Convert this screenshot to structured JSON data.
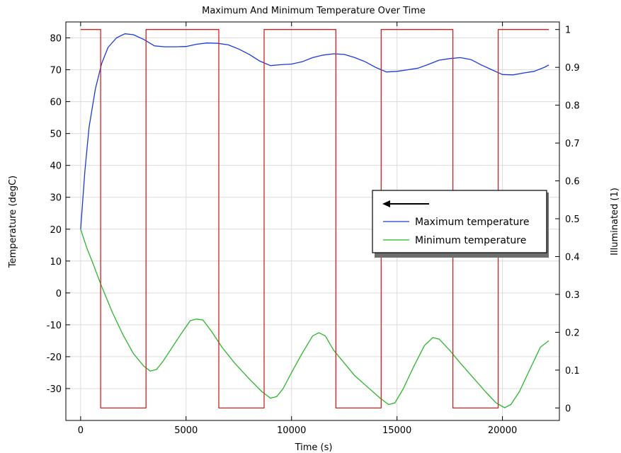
{
  "chart_data": {
    "type": "line",
    "title": "Maximum And Minimum Temperature Over Time",
    "xlabel": "Time (s)",
    "ylabel": "Temperature (degC)",
    "y2label": "Illuminated (1)",
    "xlim": [
      -700,
      22700
    ],
    "ylim": [
      -40,
      85
    ],
    "y2lim": [
      -0.033,
      1.02
    ],
    "x_ticks": [
      0,
      5000,
      10000,
      15000,
      20000
    ],
    "x_tick_labels": [
      "0",
      "5000",
      "10000",
      "15000",
      "20000"
    ],
    "y_ticks": [
      -30,
      -20,
      -10,
      0,
      10,
      20,
      30,
      40,
      50,
      60,
      70,
      80
    ],
    "y_tick_labels": [
      "-30",
      "-20",
      "-10",
      "0",
      "10",
      "20",
      "30",
      "40",
      "50",
      "60",
      "70",
      "80"
    ],
    "y2_ticks": [
      0,
      0.1,
      0.2,
      0.3,
      0.4,
      0.5,
      0.6,
      0.7,
      0.8,
      0.9,
      1
    ],
    "y2_tick_labels": [
      "0",
      "0.1",
      "0.2",
      "0.3",
      "0.4",
      "0.5",
      "0.6",
      "0.7",
      "0.8",
      "0.9",
      "1"
    ],
    "grid": true,
    "legend_position": "right",
    "legend_arrow": "←",
    "series": [
      {
        "name": "Maximum temperature",
        "color": "#1a3ad6",
        "axis": "left",
        "x": [
          0,
          200,
          400,
          700,
          1000,
          1300,
          1700,
          2100,
          2500,
          3000,
          3500,
          4000,
          4500,
          5000,
          5500,
          6000,
          6500,
          7000,
          7500,
          8000,
          8500,
          9000,
          9500,
          10000,
          10500,
          11000,
          11500,
          12000,
          12500,
          13000,
          13500,
          14000,
          14500,
          15000,
          15500,
          16000,
          16500,
          17000,
          17500,
          18000,
          18500,
          19000,
          19500,
          20000,
          20500,
          21000,
          21500,
          22000,
          22200
        ],
        "y": [
          20,
          38,
          52,
          64,
          72,
          77,
          80,
          81.3,
          81,
          79.5,
          77.5,
          77.2,
          77.2,
          77.3,
          78,
          78.4,
          78.3,
          77.8,
          76.5,
          74.8,
          72.7,
          71.3,
          71.6,
          71.8,
          72.5,
          73.8,
          74.6,
          75,
          74.8,
          73.8,
          72.5,
          70.7,
          69.3,
          69.5,
          70,
          70.5,
          71.7,
          73,
          73.5,
          73.8,
          73.2,
          71.5,
          70,
          68.5,
          68.4,
          69,
          69.5,
          70.8,
          71.5
        ]
      },
      {
        "name": "Minimum temperature",
        "color": "#2bb52b",
        "axis": "left",
        "x": [
          0,
          100,
          300,
          600,
          1000,
          1500,
          2000,
          2500,
          3000,
          3300,
          3600,
          3900,
          4300,
          4800,
          5200,
          5500,
          5800,
          6200,
          6700,
          7300,
          8000,
          8600,
          9000,
          9300,
          9600,
          10000,
          10500,
          11000,
          11300,
          11600,
          12000,
          12500,
          13000,
          13600,
          14200,
          14600,
          14900,
          15300,
          15800,
          16300,
          16700,
          17000,
          17500,
          18000,
          18600,
          19200,
          19700,
          20100,
          20400,
          20800,
          21300,
          21800,
          22200
        ],
        "y": [
          20,
          18,
          14,
          9,
          2,
          -6,
          -13,
          -19,
          -23,
          -24.5,
          -24,
          -21.5,
          -17.5,
          -12.5,
          -8.7,
          -8.2,
          -8.5,
          -12,
          -17,
          -22,
          -27,
          -31,
          -33,
          -32.5,
          -30,
          -25,
          -19,
          -13.5,
          -12.5,
          -13.5,
          -18,
          -22,
          -26,
          -29.5,
          -33,
          -35,
          -34.5,
          -30,
          -23,
          -16.5,
          -14,
          -14.5,
          -18,
          -22,
          -26.5,
          -31,
          -34.5,
          -36,
          -35,
          -31,
          -24,
          -17,
          -15
        ]
      },
      {
        "name": "Illuminated",
        "color": "#d62020",
        "axis": "right",
        "x": [
          0,
          950,
          950,
          3100,
          3100,
          6550,
          6550,
          8700,
          8700,
          12100,
          12100,
          14250,
          14250,
          17650,
          17650,
          19800,
          19800,
          22200
        ],
        "y": [
          1,
          1,
          0,
          0,
          1,
          1,
          0,
          0,
          1,
          1,
          0,
          0,
          1,
          1,
          0,
          0,
          1,
          1
        ]
      }
    ]
  }
}
